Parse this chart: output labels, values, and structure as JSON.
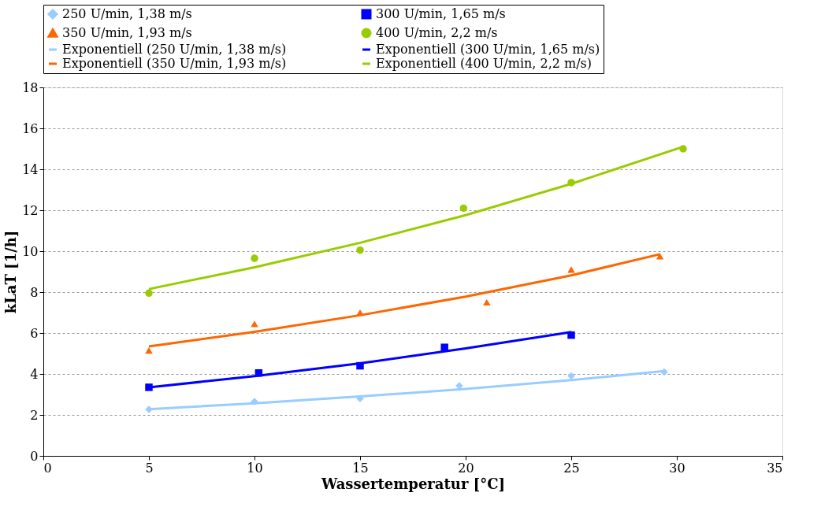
{
  "chart_data": {
    "type": "scatter",
    "xlabel": "Wassertemperatur [°C]",
    "ylabel": "kLaT [1/h]",
    "xlim": [
      0,
      35
    ],
    "xticks": [
      0,
      5,
      10,
      15,
      20,
      25,
      30,
      35
    ],
    "ylim": [
      0,
      18
    ],
    "yticks": [
      0,
      2,
      4,
      6,
      8,
      10,
      12,
      14,
      16,
      18
    ],
    "grid": "y",
    "legend": "top",
    "series": [
      {
        "name": "250 U/min, 1,38 m/s",
        "color": "#99ccff",
        "marker": "diamond",
        "x": [
          5,
          10,
          15,
          19.7,
          25,
          29.4
        ],
        "values": [
          2.27,
          2.65,
          2.8,
          3.42,
          3.9,
          4.1
        ]
      },
      {
        "name": "300 U/min, 1,65 m/s",
        "color": "#0000ff",
        "marker": "square",
        "x": [
          5,
          10.2,
          15,
          19,
          25
        ],
        "values": [
          3.35,
          4.05,
          4.4,
          5.3,
          5.9
        ]
      },
      {
        "name": "350 U/min, 1,93 m/s",
        "color": "#ff6600",
        "marker": "triangle",
        "x": [
          5,
          10,
          15,
          21,
          25,
          29.2
        ],
        "values": [
          5.15,
          6.45,
          7.0,
          7.5,
          9.1,
          9.75
        ]
      },
      {
        "name": "400 U/min, 2,2 m/s",
        "color": "#99cc00",
        "marker": "circle",
        "x": [
          5,
          10,
          15,
          19.9,
          25,
          30.3
        ],
        "values": [
          7.95,
          9.65,
          10.05,
          12.1,
          13.35,
          15.0
        ]
      },
      {
        "type": "line",
        "name": "Exponentiell (250 U/min, 1,38 m/s)",
        "color": "#99ccff",
        "marker": "none",
        "x": [
          5,
          10,
          15,
          20,
          25,
          29.5
        ],
        "values": [
          2.28,
          2.57,
          2.9,
          3.27,
          3.7,
          4.15
        ]
      },
      {
        "type": "line",
        "name": "Exponentiell (300 U/min, 1,65 m/s)",
        "color": "#0000ff",
        "marker": "none",
        "x": [
          5,
          10,
          15,
          20,
          25
        ],
        "values": [
          3.35,
          3.89,
          4.52,
          5.25,
          6.05
        ]
      },
      {
        "type": "line",
        "name": "Exponentiell (350 U/min, 1,93 m/s)",
        "color": "#ff6600",
        "marker": "none",
        "x": [
          5,
          10,
          15,
          20,
          25,
          29.2
        ],
        "values": [
          5.35,
          6.06,
          6.87,
          7.78,
          8.82,
          9.85
        ]
      },
      {
        "type": "line",
        "name": "Exponentiell (400 U/min, 2,2 m/s)",
        "color": "#99cc00",
        "marker": "none",
        "x": [
          5,
          10,
          15,
          20,
          25,
          30.3
        ],
        "values": [
          8.15,
          9.21,
          10.41,
          11.76,
          13.29,
          15.1
        ]
      }
    ]
  }
}
